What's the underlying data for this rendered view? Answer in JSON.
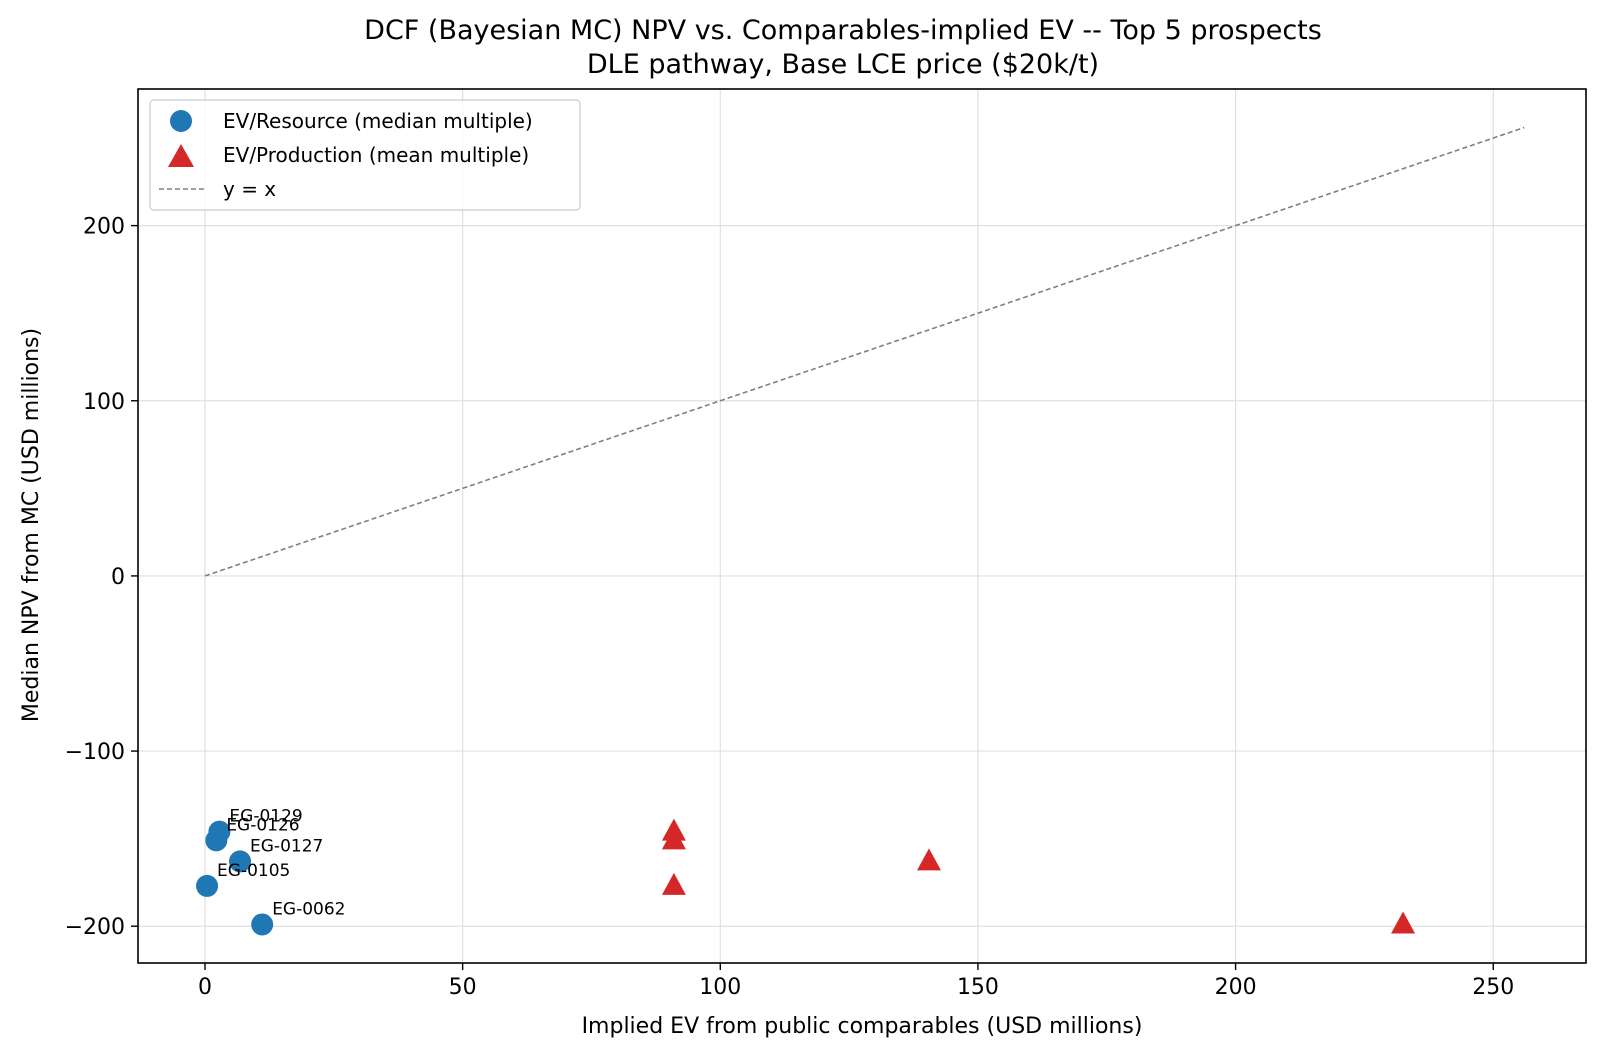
{
  "chart_data": {
    "type": "scatter",
    "title_line1": "DCF (Bayesian MC) NPV vs. Comparables-implied EV  --  Top 5 prospects",
    "title_line2": "DLE pathway, Base LCE price ($20k/t)",
    "xlabel": "Implied EV from public comparables (USD millions)",
    "ylabel": "Median NPV from MC (USD millions)",
    "xlim": [
      -13,
      268
    ],
    "ylim": [
      -221,
      278
    ],
    "xticks": [
      0,
      50,
      100,
      150,
      200,
      250
    ],
    "xtick_labels": [
      "0",
      "50",
      "100",
      "150",
      "200",
      "250"
    ],
    "yticks": [
      -200,
      -100,
      0,
      100,
      200
    ],
    "ytick_labels": [
      "−200",
      "−100",
      "0",
      "100",
      "200"
    ],
    "grid": true,
    "legend_position": "top-left",
    "series": [
      {
        "name": "EV/Resource (median multiple)",
        "marker": "circle",
        "color": "#1f77b4",
        "points": [
          {
            "label": "EG-0129",
            "x": 2.8,
            "y": -146
          },
          {
            "label": "EG-0126",
            "x": 2.2,
            "y": -151
          },
          {
            "label": "EG-0127",
            "x": 6.8,
            "y": -163
          },
          {
            "label": "EG-0105",
            "x": 0.4,
            "y": -177
          },
          {
            "label": "EG-0062",
            "x": 11.1,
            "y": -199
          }
        ]
      },
      {
        "name": "EV/Production (mean multiple)",
        "marker": "triangle",
        "color": "#d62728",
        "points": [
          {
            "x": 91,
            "y": -146
          },
          {
            "x": 91,
            "y": -151
          },
          {
            "x": 91,
            "y": -177
          },
          {
            "x": 140.5,
            "y": -163
          },
          {
            "x": 232.5,
            "y": -199
          }
        ]
      },
      {
        "name": "y = x",
        "type": "reference-line",
        "color": "#808080",
        "x": [
          0,
          256
        ],
        "y": [
          0,
          256
        ]
      }
    ]
  }
}
